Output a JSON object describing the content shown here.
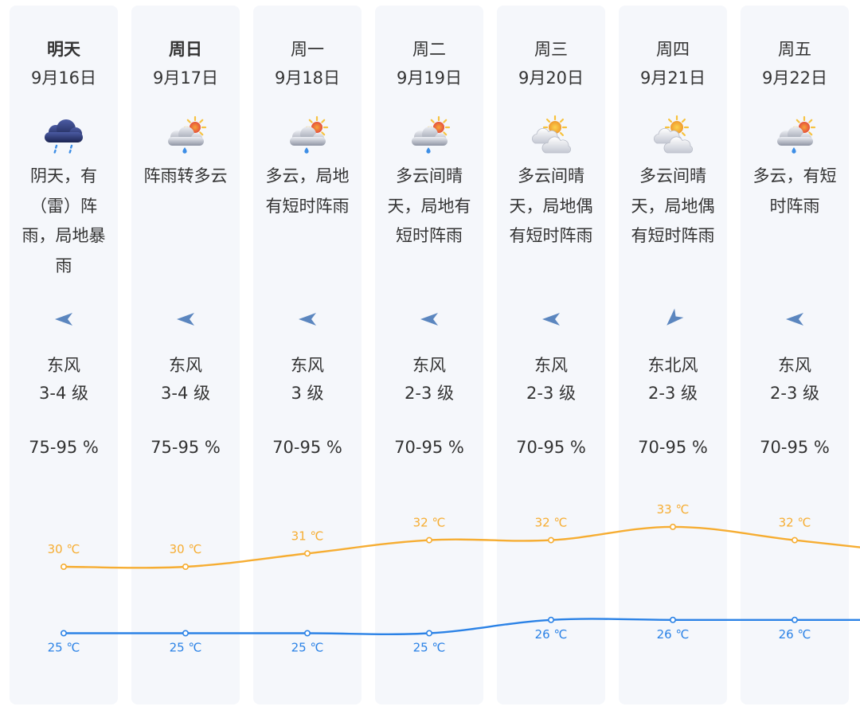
{
  "days": [
    {
      "day": "明天",
      "date": "9月16日",
      "icon": "heavy-rain-cloud-icon",
      "weather": "阴天，有（雷）阵雨，局地暴雨",
      "wind_arrow": "west",
      "wind_dir": "东风",
      "wind_level": "3-4 级",
      "humidity": "75-95 %"
    },
    {
      "day": "周日",
      "date": "9月17日",
      "icon": "sun-cloud-shower-icon",
      "weather": "阵雨转多云",
      "wind_arrow": "west",
      "wind_dir": "东风",
      "wind_level": "3-4 级",
      "humidity": "75-95 %"
    },
    {
      "day": "周一",
      "date": "9月18日",
      "icon": "sun-cloud-shower-icon",
      "weather": "多云，局地有短时阵雨",
      "wind_arrow": "west",
      "wind_dir": "东风",
      "wind_level": "3 级",
      "humidity": "70-95 %"
    },
    {
      "day": "周二",
      "date": "9月19日",
      "icon": "sun-cloud-shower-icon",
      "weather": "多云间晴天，局地有短时阵雨",
      "wind_arrow": "west",
      "wind_dir": "东风",
      "wind_level": "2-3 级",
      "humidity": "70-95 %"
    },
    {
      "day": "周三",
      "date": "9月20日",
      "icon": "partly-cloudy-icon",
      "weather": "多云间晴天，局地偶有短时阵雨",
      "wind_arrow": "west",
      "wind_dir": "东风",
      "wind_level": "2-3 级",
      "humidity": "70-95 %"
    },
    {
      "day": "周四",
      "date": "9月21日",
      "icon": "partly-cloudy-icon",
      "weather": "多云间晴天，局地偶有短时阵雨",
      "wind_arrow": "southwest",
      "wind_dir": "东北风",
      "wind_level": "2-3 级",
      "humidity": "70-95 %"
    },
    {
      "day": "周五",
      "date": "9月22日",
      "icon": "sun-cloud-shower-icon",
      "weather": "多云，有短时阵雨",
      "wind_arrow": "west",
      "wind_dir": "东风",
      "wind_level": "2-3 级",
      "humidity": "70-95 %"
    }
  ],
  "colors": {
    "card_bg": "#f5f7fb",
    "text": "#333333",
    "wind_arrow": "#5b86bf"
  },
  "chart_data": {
    "type": "line",
    "unit": "℃",
    "series": [
      {
        "values": [
          30,
          30,
          31,
          32,
          32,
          33,
          32
        ],
        "color": "#f6ad32"
      },
      {
        "values": [
          25,
          25,
          25,
          25,
          26,
          26,
          26
        ],
        "color": "#2b82e6"
      }
    ]
  }
}
